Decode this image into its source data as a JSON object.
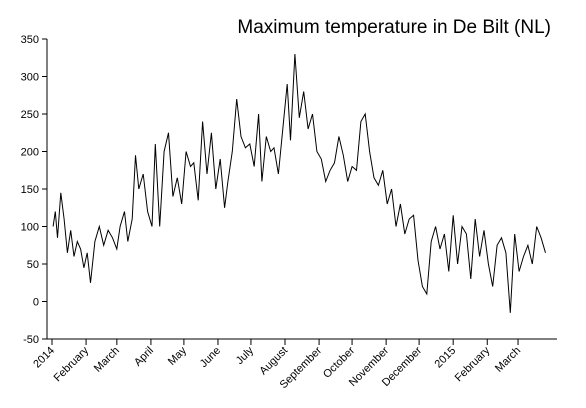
{
  "chart_data": {
    "type": "line",
    "title": "Maximum temperature in De Bilt (NL)",
    "xlabel": "",
    "ylabel": "",
    "ylim": [
      -50,
      350
    ],
    "y_ticks": [
      -50,
      0,
      50,
      100,
      150,
      200,
      250,
      300,
      350
    ],
    "x_range": [
      "2014-01-01",
      "2015-03-31"
    ],
    "x_ticks": [
      {
        "date": "2014-01-01",
        "label": "2014"
      },
      {
        "date": "2014-02-01",
        "label": "February"
      },
      {
        "date": "2014-03-01",
        "label": "March"
      },
      {
        "date": "2014-04-01",
        "label": "April"
      },
      {
        "date": "2014-05-01",
        "label": "May"
      },
      {
        "date": "2014-06-01",
        "label": "June"
      },
      {
        "date": "2014-07-01",
        "label": "July"
      },
      {
        "date": "2014-08-01",
        "label": "August"
      },
      {
        "date": "2014-09-01",
        "label": "September"
      },
      {
        "date": "2014-10-01",
        "label": "October"
      },
      {
        "date": "2014-11-01",
        "label": "November"
      },
      {
        "date": "2014-12-01",
        "label": "December"
      },
      {
        "date": "2015-01-01",
        "label": "2015"
      },
      {
        "date": "2015-02-01",
        "label": "February"
      },
      {
        "date": "2015-03-01",
        "label": "March"
      }
    ],
    "grid": false,
    "line_color": "#000000",
    "series": [
      {
        "x": [
          "2014-01-02",
          "2014-01-04",
          "2014-01-06",
          "2014-01-09",
          "2014-01-12",
          "2014-01-15",
          "2014-01-18",
          "2014-01-21",
          "2014-01-24",
          "2014-01-27",
          "2014-01-30",
          "2014-02-02",
          "2014-02-05",
          "2014-02-09",
          "2014-02-13",
          "2014-02-17",
          "2014-02-21",
          "2014-02-25",
          "2014-03-01",
          "2014-03-04",
          "2014-03-08",
          "2014-03-11",
          "2014-03-15",
          "2014-03-18",
          "2014-03-21",
          "2014-03-25",
          "2014-03-29",
          "2014-04-02",
          "2014-04-05",
          "2014-04-09",
          "2014-04-13",
          "2014-04-17",
          "2014-04-21",
          "2014-04-25",
          "2014-04-29",
          "2014-05-03",
          "2014-05-07",
          "2014-05-10",
          "2014-05-14",
          "2014-05-18",
          "2014-05-22",
          "2014-05-26",
          "2014-05-30",
          "2014-06-03",
          "2014-06-07",
          "2014-06-10",
          "2014-06-14",
          "2014-06-18",
          "2014-06-22",
          "2014-06-26",
          "2014-06-30",
          "2014-07-04",
          "2014-07-08",
          "2014-07-11",
          "2014-07-15",
          "2014-07-19",
          "2014-07-22",
          "2014-07-26",
          "2014-07-30",
          "2014-08-03",
          "2014-08-06",
          "2014-08-10",
          "2014-08-14",
          "2014-08-18",
          "2014-08-22",
          "2014-08-26",
          "2014-08-30",
          "2014-09-03",
          "2014-09-07",
          "2014-09-11",
          "2014-09-15",
          "2014-09-19",
          "2014-09-23",
          "2014-09-27",
          "2014-10-01",
          "2014-10-05",
          "2014-10-09",
          "2014-10-13",
          "2014-10-17",
          "2014-10-21",
          "2014-10-25",
          "2014-10-29",
          "2014-11-02",
          "2014-11-06",
          "2014-11-10",
          "2014-11-14",
          "2014-11-18",
          "2014-11-22",
          "2014-11-26",
          "2014-11-30",
          "2014-12-04",
          "2014-12-08",
          "2014-12-12",
          "2014-12-16",
          "2014-12-20",
          "2014-12-24",
          "2014-12-28",
          "2015-01-01",
          "2015-01-05",
          "2015-01-09",
          "2015-01-13",
          "2015-01-17",
          "2015-01-21",
          "2015-01-25",
          "2015-01-29",
          "2015-02-02",
          "2015-02-06",
          "2015-02-10",
          "2015-02-14",
          "2015-02-18",
          "2015-02-22",
          "2015-02-26",
          "2015-03-02",
          "2015-03-06",
          "2015-03-10",
          "2015-03-14",
          "2015-03-18",
          "2015-03-22",
          "2015-03-26"
        ],
        "values": [
          100,
          120,
          85,
          145,
          110,
          65,
          95,
          60,
          80,
          70,
          45,
          65,
          25,
          80,
          100,
          75,
          95,
          85,
          70,
          100,
          120,
          80,
          110,
          195,
          150,
          170,
          120,
          100,
          210,
          100,
          200,
          225,
          140,
          165,
          130,
          200,
          180,
          185,
          135,
          240,
          170,
          225,
          150,
          190,
          125,
          160,
          200,
          270,
          220,
          205,
          210,
          180,
          250,
          160,
          220,
          200,
          205,
          170,
          230,
          290,
          215,
          330,
          245,
          280,
          230,
          250,
          200,
          190,
          160,
          175,
          185,
          220,
          195,
          160,
          180,
          175,
          240,
          250,
          200,
          165,
          155,
          175,
          130,
          150,
          100,
          130,
          90,
          110,
          115,
          55,
          20,
          10,
          80,
          100,
          70,
          90,
          40,
          115,
          50,
          100,
          90,
          30,
          110,
          60,
          95,
          50,
          20,
          75,
          85,
          65,
          -15,
          90,
          40,
          60,
          75,
          50,
          100,
          85,
          65
        ]
      }
    ]
  }
}
